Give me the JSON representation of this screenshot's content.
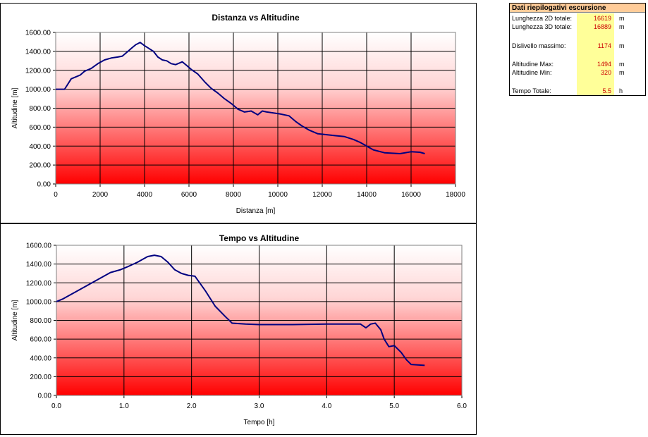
{
  "summary": {
    "title": "Dati riepilogativi escursione",
    "rows": [
      {
        "label": "Lunghezza 2D totale:",
        "value": "16619",
        "unit": "m"
      },
      {
        "label": "Lunghezza 3D totale:",
        "value": "16889",
        "unit": "m"
      },
      {
        "label": "Dislivello massimo:",
        "value": "1174",
        "unit": "m"
      },
      {
        "label": "Altitudine Max:",
        "value": "1494",
        "unit": "m"
      },
      {
        "label": "Altitudine Min:",
        "value": "320",
        "unit": "m"
      },
      {
        "label": "Tempo Totale:",
        "value": "5.5",
        "unit": "h"
      }
    ]
  },
  "colors": {
    "line": "#000080",
    "gradient_top": "#ffffff",
    "gradient_bottom": "#ff0000"
  },
  "chart_data": [
    {
      "type": "line",
      "title": "Distanza vs Altitudine",
      "xlabel": "Distanza [m]",
      "ylabel": "Altitudine [m]",
      "xlim": [
        0,
        18000
      ],
      "ylim": [
        0,
        1600
      ],
      "xticks": [
        0,
        2000,
        4000,
        6000,
        8000,
        10000,
        12000,
        14000,
        16000,
        18000
      ],
      "yticks": [
        0,
        200,
        400,
        600,
        800,
        1000,
        1200,
        1400,
        1600
      ],
      "xtick_labels": [
        "0",
        "2000",
        "4000",
        "6000",
        "8000",
        "10000",
        "12000",
        "14000",
        "16000",
        "18000"
      ],
      "ytick_labels": [
        "0.00",
        "200.00",
        "400.00",
        "600.00",
        "800.00",
        "1000.00",
        "1200.00",
        "1400.00",
        "1600.00"
      ],
      "grid": true,
      "series": [
        {
          "x": [
            0,
            400,
            700,
            900,
            1100,
            1300,
            1600,
            1900,
            2200,
            2500,
            2800,
            3000,
            3200,
            3400,
            3600,
            3800,
            4000,
            4200,
            4400,
            4600,
            4800,
            5000,
            5200,
            5400,
            5700,
            5900,
            6100,
            6400,
            6700,
            7000,
            7300,
            7600,
            7900,
            8200,
            8500,
            8800,
            9100,
            9300,
            9500,
            9800,
            10100,
            10500,
            10800,
            11100,
            11400,
            11800,
            12200,
            12600,
            13000,
            13400,
            13700,
            14000,
            14300,
            14800,
            15500,
            16000,
            16400,
            16619
          ],
          "y": [
            1000,
            1000,
            1110,
            1130,
            1150,
            1190,
            1220,
            1270,
            1310,
            1330,
            1340,
            1350,
            1390,
            1430,
            1470,
            1494,
            1460,
            1430,
            1400,
            1340,
            1310,
            1300,
            1270,
            1260,
            1290,
            1250,
            1210,
            1160,
            1080,
            1010,
            960,
            900,
            850,
            790,
            760,
            770,
            730,
            770,
            760,
            750,
            740,
            720,
            660,
            610,
            570,
            530,
            520,
            510,
            500,
            470,
            440,
            400,
            360,
            330,
            320,
            340,
            335,
            320
          ]
        }
      ]
    },
    {
      "type": "line",
      "title": "Tempo vs Altitudine",
      "xlabel": "Tempo [h]",
      "ylabel": "Altitudine [m]",
      "xlim": [
        0,
        6
      ],
      "ylim": [
        0,
        1600
      ],
      "xticks": [
        0,
        1,
        2,
        3,
        4,
        5,
        6
      ],
      "yticks": [
        0,
        200,
        400,
        600,
        800,
        1000,
        1200,
        1400,
        1600
      ],
      "xtick_labels": [
        "0.0",
        "1.0",
        "2.0",
        "3.0",
        "4.0",
        "5.0",
        "6.0"
      ],
      "ytick_labels": [
        "0.00",
        "200.00",
        "400.00",
        "600.00",
        "800.00",
        "1000.00",
        "1200.00",
        "1400.00",
        "1600.00"
      ],
      "grid": true,
      "series": [
        {
          "x": [
            0,
            0.1,
            0.3,
            0.5,
            0.65,
            0.8,
            0.95,
            1.05,
            1.2,
            1.35,
            1.45,
            1.55,
            1.65,
            1.75,
            1.85,
            1.95,
            2.05,
            2.2,
            2.35,
            2.5,
            2.6,
            2.8,
            3.0,
            3.5,
            4.0,
            4.5,
            4.58,
            4.65,
            4.72,
            4.8,
            4.85,
            4.92,
            5.0,
            5.1,
            5.18,
            5.25,
            5.35,
            5.45
          ],
          "y": [
            1000,
            1030,
            1110,
            1190,
            1250,
            1310,
            1340,
            1370,
            1420,
            1480,
            1494,
            1480,
            1420,
            1340,
            1300,
            1280,
            1270,
            1120,
            950,
            840,
            770,
            760,
            755,
            755,
            760,
            760,
            720,
            760,
            770,
            700,
            600,
            520,
            530,
            460,
            380,
            330,
            325,
            320
          ]
        }
      ]
    }
  ]
}
